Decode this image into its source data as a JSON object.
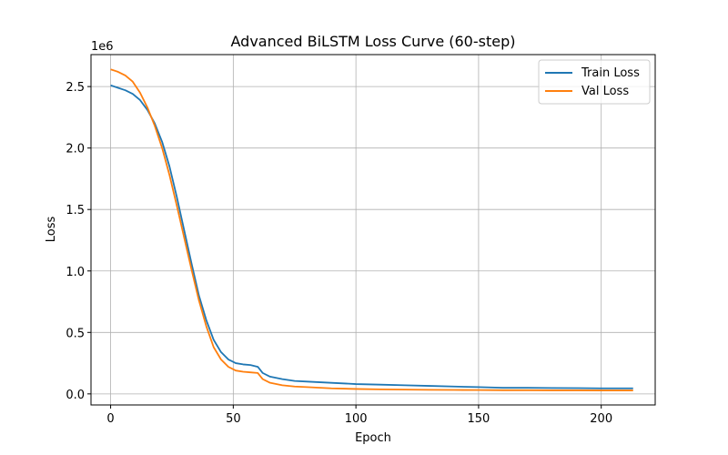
{
  "chart_data": {
    "type": "line",
    "title": "Advanced BiLSTM Loss Curve (60-step)",
    "xlabel": "Epoch",
    "ylabel": "Loss",
    "y_offset_label": "1e6",
    "xlim": [
      -8,
      222
    ],
    "ylim": [
      -0.09,
      2.76
    ],
    "y_scale_factor": 1000000,
    "x_ticks": [
      0,
      50,
      100,
      150,
      200
    ],
    "x_tick_labels": [
      "0",
      "50",
      "100",
      "150",
      "200"
    ],
    "y_ticks": [
      0.0,
      0.5,
      1.0,
      1.5,
      2.0,
      2.5
    ],
    "y_tick_labels": [
      "0.0",
      "0.5",
      "1.0",
      "1.5",
      "2.0",
      "2.5"
    ],
    "grid": true,
    "legend_position": "top-right",
    "series": [
      {
        "name": "Train Loss",
        "color": "#1f77b4",
        "points": [
          [
            0,
            2.51
          ],
          [
            3,
            2.49
          ],
          [
            6,
            2.47
          ],
          [
            9,
            2.44
          ],
          [
            12,
            2.39
          ],
          [
            15,
            2.31
          ],
          [
            18,
            2.2
          ],
          [
            21,
            2.05
          ],
          [
            24,
            1.85
          ],
          [
            27,
            1.6
          ],
          [
            30,
            1.33
          ],
          [
            33,
            1.06
          ],
          [
            36,
            0.8
          ],
          [
            39,
            0.6
          ],
          [
            42,
            0.44
          ],
          [
            45,
            0.34
          ],
          [
            48,
            0.28
          ],
          [
            51,
            0.25
          ],
          [
            54,
            0.24
          ],
          [
            57,
            0.235
          ],
          [
            60,
            0.22
          ],
          [
            62,
            0.17
          ],
          [
            65,
            0.14
          ],
          [
            70,
            0.12
          ],
          [
            75,
            0.105
          ],
          [
            80,
            0.1
          ],
          [
            90,
            0.09
          ],
          [
            100,
            0.08
          ],
          [
            110,
            0.075
          ],
          [
            120,
            0.07
          ],
          [
            130,
            0.065
          ],
          [
            140,
            0.06
          ],
          [
            150,
            0.055
          ],
          [
            160,
            0.05
          ],
          [
            170,
            0.05
          ],
          [
            180,
            0.048
          ],
          [
            190,
            0.047
          ],
          [
            200,
            0.045
          ],
          [
            213,
            0.045
          ]
        ]
      },
      {
        "name": "Val Loss",
        "color": "#ff7f0e",
        "points": [
          [
            0,
            2.64
          ],
          [
            3,
            2.62
          ],
          [
            6,
            2.59
          ],
          [
            9,
            2.54
          ],
          [
            12,
            2.45
          ],
          [
            15,
            2.33
          ],
          [
            18,
            2.18
          ],
          [
            21,
            2.0
          ],
          [
            24,
            1.78
          ],
          [
            27,
            1.53
          ],
          [
            30,
            1.27
          ],
          [
            33,
            1.01
          ],
          [
            36,
            0.76
          ],
          [
            39,
            0.55
          ],
          [
            42,
            0.38
          ],
          [
            45,
            0.28
          ],
          [
            48,
            0.22
          ],
          [
            51,
            0.19
          ],
          [
            54,
            0.18
          ],
          [
            57,
            0.175
          ],
          [
            60,
            0.17
          ],
          [
            62,
            0.12
          ],
          [
            65,
            0.09
          ],
          [
            70,
            0.07
          ],
          [
            75,
            0.06
          ],
          [
            80,
            0.055
          ],
          [
            90,
            0.045
          ],
          [
            100,
            0.04
          ],
          [
            110,
            0.037
          ],
          [
            120,
            0.035
          ],
          [
            130,
            0.033
          ],
          [
            140,
            0.032
          ],
          [
            150,
            0.031
          ],
          [
            160,
            0.03
          ],
          [
            170,
            0.03
          ],
          [
            180,
            0.029
          ],
          [
            190,
            0.029
          ],
          [
            200,
            0.028
          ],
          [
            213,
            0.028
          ]
        ]
      }
    ]
  }
}
